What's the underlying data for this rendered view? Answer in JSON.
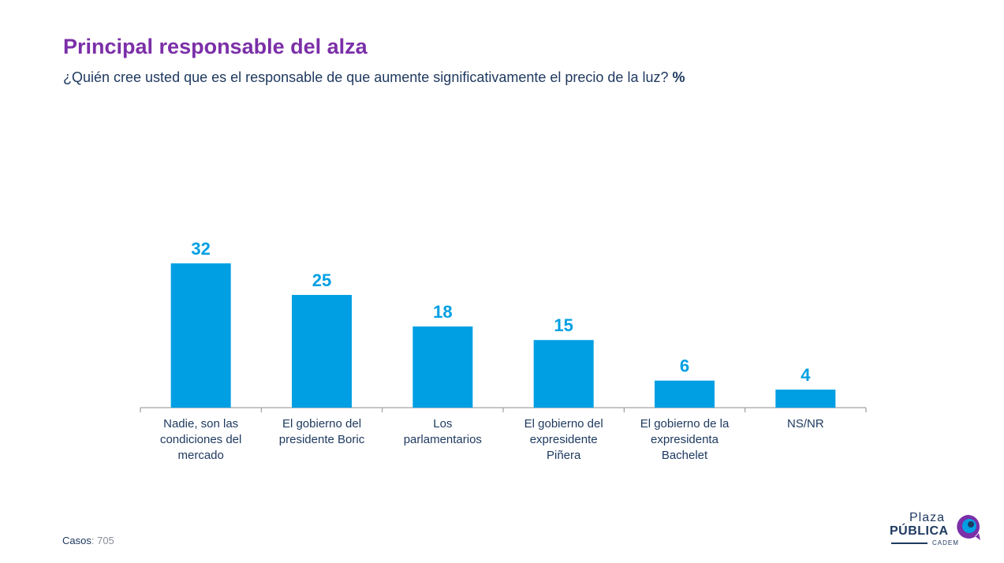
{
  "header": {
    "title": "Principal responsable del alza",
    "subtitle": "¿Quién cree usted que es el responsable de que aumente significativamente el precio de la luz?",
    "unit": "%"
  },
  "footer": {
    "cases_label": "Casos",
    "cases_value": ": 705"
  },
  "logo": {
    "line1": "Plaza",
    "line2": "PÚBLICA",
    "line3": "CADEM"
  },
  "colors": {
    "bar": "#009fe3",
    "title": "#7b2fa8",
    "text": "#1f3a60"
  },
  "chart_data": {
    "type": "bar",
    "categories": [
      [
        "Nadie, son las",
        "condiciones del",
        "mercado"
      ],
      [
        "El gobierno del",
        "presidente Boric"
      ],
      [
        "Los",
        "parlamentarios"
      ],
      [
        "El gobierno del",
        "expresidente",
        "Piñera"
      ],
      [
        "El gobierno de la",
        "expresidenta",
        "Bachelet"
      ],
      [
        "NS/NR"
      ]
    ],
    "values": [
      32,
      25,
      18,
      15,
      6,
      4
    ],
    "value_labels": [
      "32",
      "25",
      "18",
      "15",
      "6",
      "4"
    ],
    "title": "",
    "xlabel": "",
    "ylabel": "",
    "ylim": [
      0,
      32
    ],
    "grid": false,
    "legend": "none"
  }
}
